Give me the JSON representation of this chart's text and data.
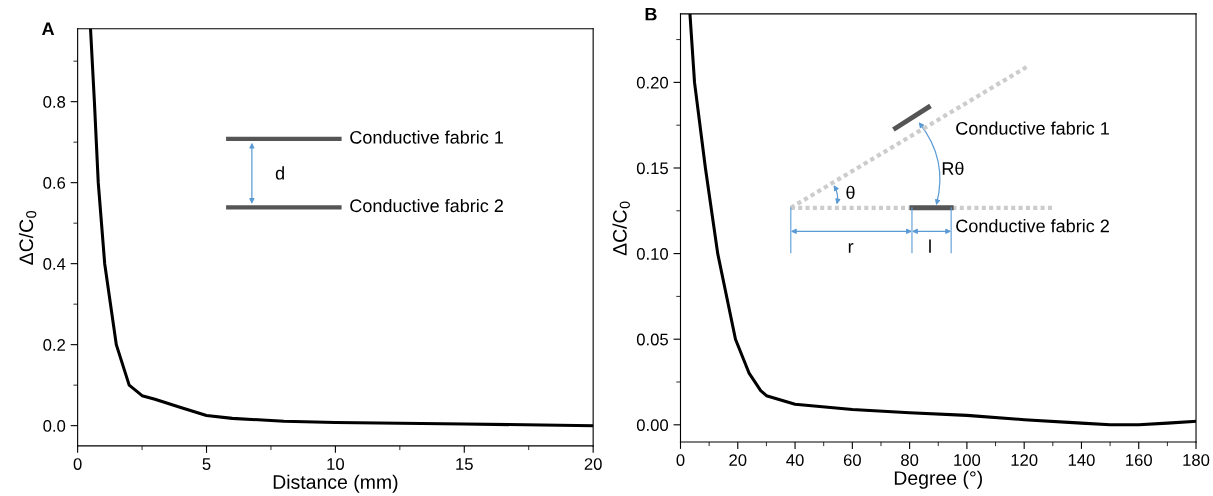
{
  "chart_data": [
    {
      "type": "line",
      "title": "A",
      "xlabel": "Distance (mm)",
      "ylabel": "ΔC/C$_{0}$",
      "x": [
        0.5,
        0.65,
        0.8,
        1.05,
        1.5,
        2.0,
        2.5,
        3.0,
        4.0,
        5.0,
        6.0,
        8.0,
        10.0,
        15.0,
        20.0
      ],
      "series": [
        {
          "color": "#000000",
          "values": [
            0.98,
            0.8,
            0.6,
            0.4,
            0.2,
            0.1,
            0.074,
            0.065,
            0.045,
            0.025,
            0.018,
            0.011,
            0.008,
            0.004,
            0.0
          ]
        }
      ],
      "xlim": [
        0,
        20
      ],
      "ylim": [
        -0.05,
        0.98
      ],
      "xticks": [
        0,
        {
          "value": 2.5,
          "label": null
        },
        5,
        {
          "value": 7.5,
          "label": null
        },
        10,
        {
          "value": 12.5,
          "label": null
        },
        15,
        {
          "value": 17.5,
          "label": null
        },
        20
      ],
      "yticks": [
        {
          "value": 0.0,
          "label": "0.0"
        },
        {
          "value": 0.1,
          "label": null
        },
        0.2,
        {
          "value": 0.3,
          "label": null
        },
        0.4,
        {
          "value": 0.5,
          "label": null
        },
        0.6,
        {
          "value": 0.7,
          "label": null
        },
        0.8,
        {
          "value": 0.9,
          "label": null
        }
      ],
      "grid": false,
      "legend": false,
      "marker": "none",
      "line_style": "solid",
      "annotations": [
        "Conductive fabric 1",
        "d",
        "Conductive fabric 2"
      ]
    },
    {
      "type": "line",
      "title": "B",
      "xlabel": "Degree (°)",
      "ylabel": "ΔC/C$_{0}$",
      "x": [
        3.3,
        4.9,
        8.7,
        13,
        19.2,
        24,
        28,
        30,
        40,
        60,
        80,
        100,
        120,
        140,
        150,
        160,
        170,
        180
      ],
      "series": [
        {
          "color": "#000000",
          "values": [
            0.24,
            0.2,
            0.15,
            0.1,
            0.05,
            0.03,
            0.02,
            0.017,
            0.012,
            0.009,
            0.007,
            0.0055,
            0.003,
            0.001,
            0.0,
            0.0,
            0.001,
            0.002
          ]
        }
      ],
      "xlim": [
        0,
        180
      ],
      "ylim": [
        -0.01,
        0.24
      ],
      "xticks": [
        0,
        {
          "value": 10,
          "label": null
        },
        20,
        {
          "value": 30,
          "label": null
        },
        40,
        {
          "value": 50,
          "label": null
        },
        60,
        {
          "value": 70,
          "label": null
        },
        80,
        {
          "value": 90,
          "label": null
        },
        100,
        {
          "value": 110,
          "label": null
        },
        120,
        {
          "value": 130,
          "label": null
        },
        140,
        {
          "value": 150,
          "label": null
        },
        160,
        {
          "value": 170,
          "label": null
        },
        180
      ],
      "yticks": [
        {
          "value": 0.0,
          "label": "0.00"
        },
        {
          "value": 0.025,
          "label": null
        },
        {
          "value": 0.05,
          "label": "0.05"
        },
        {
          "value": 0.075,
          "label": null
        },
        {
          "value": 0.1,
          "label": "0.10"
        },
        {
          "value": 0.125,
          "label": null
        },
        {
          "value": 0.15,
          "label": "0.15"
        },
        {
          "value": 0.175,
          "label": null
        },
        {
          "value": 0.2,
          "label": "0.20"
        },
        {
          "value": 0.225,
          "label": null
        }
      ],
      "grid": false,
      "legend": false,
      "marker": "none",
      "line_style": "solid",
      "annotations": [
        "Conductive fabric 1",
        "Rθ",
        "θ",
        "Conductive fabric 2",
        "r",
        "l"
      ]
    }
  ]
}
